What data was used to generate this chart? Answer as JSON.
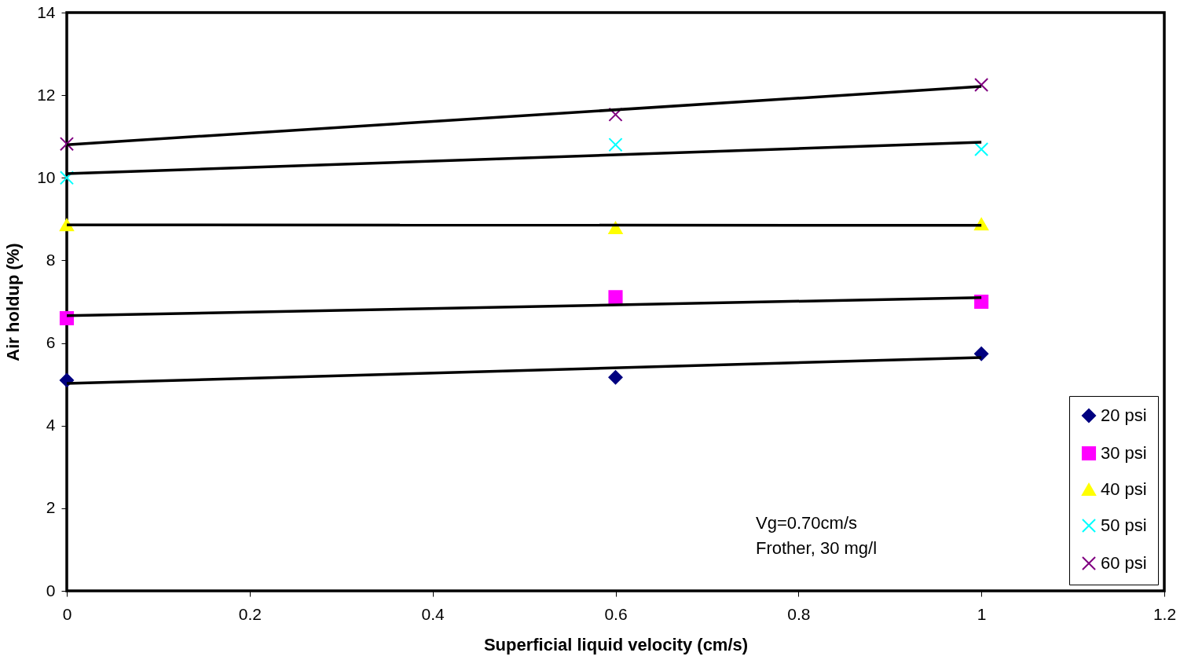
{
  "chart_data": {
    "type": "scatter",
    "xlabel": "Superficial liquid velocity (cm/s)",
    "ylabel": "Air holdup (%)",
    "xlim": [
      0,
      1.2
    ],
    "xticks": [
      0,
      0.2,
      0.4,
      0.6,
      0.8,
      1,
      1.2
    ],
    "ylim": [
      0,
      14
    ],
    "yticks": [
      0,
      2,
      4,
      6,
      8,
      10,
      12,
      14
    ],
    "grid": false,
    "legend": "bottom right",
    "annotations": [
      "Vg=0.70cm/s",
      "Frother, 30 mg/l"
    ],
    "series": [
      {
        "name": "20 psi",
        "color": "#000080",
        "marker": "diamond",
        "x": [
          0,
          0.6,
          1
        ],
        "values": [
          5.1,
          5.17,
          5.74
        ]
      },
      {
        "name": "30 psi",
        "color": "#ff00ff",
        "marker": "square",
        "x": [
          0,
          0.6,
          1
        ],
        "values": [
          6.6,
          7.11,
          7.0
        ]
      },
      {
        "name": "40 psi",
        "color": "#ffff00",
        "marker": "triangle",
        "x": [
          0,
          0.6,
          1
        ],
        "values": [
          8.86,
          8.79,
          8.88
        ]
      },
      {
        "name": "50 psi",
        "color": "#00ffff",
        "marker": "cross",
        "x": [
          0,
          0.6,
          1
        ],
        "values": [
          10.0,
          10.8,
          10.69
        ]
      },
      {
        "name": "60 psi",
        "color": "#800080",
        "marker": "cross",
        "x": [
          0,
          0.6,
          1
        ],
        "values": [
          10.82,
          11.53,
          12.25
        ]
      },
      {
        "type": "line",
        "color": "#000000",
        "x": [
          0,
          1
        ],
        "values": [
          5.02,
          5.65
        ]
      },
      {
        "type": "line",
        "color": "#000000",
        "x": [
          0,
          1
        ],
        "values": [
          6.66,
          7.1
        ]
      },
      {
        "type": "line",
        "color": "#000000",
        "x": [
          0,
          1
        ],
        "values": [
          8.86,
          8.85
        ]
      },
      {
        "type": "line",
        "color": "#000000",
        "x": [
          0,
          1
        ],
        "values": [
          10.1,
          10.86
        ]
      },
      {
        "type": "line",
        "color": "#000000",
        "x": [
          0,
          1
        ],
        "values": [
          10.8,
          12.21
        ]
      }
    ]
  }
}
